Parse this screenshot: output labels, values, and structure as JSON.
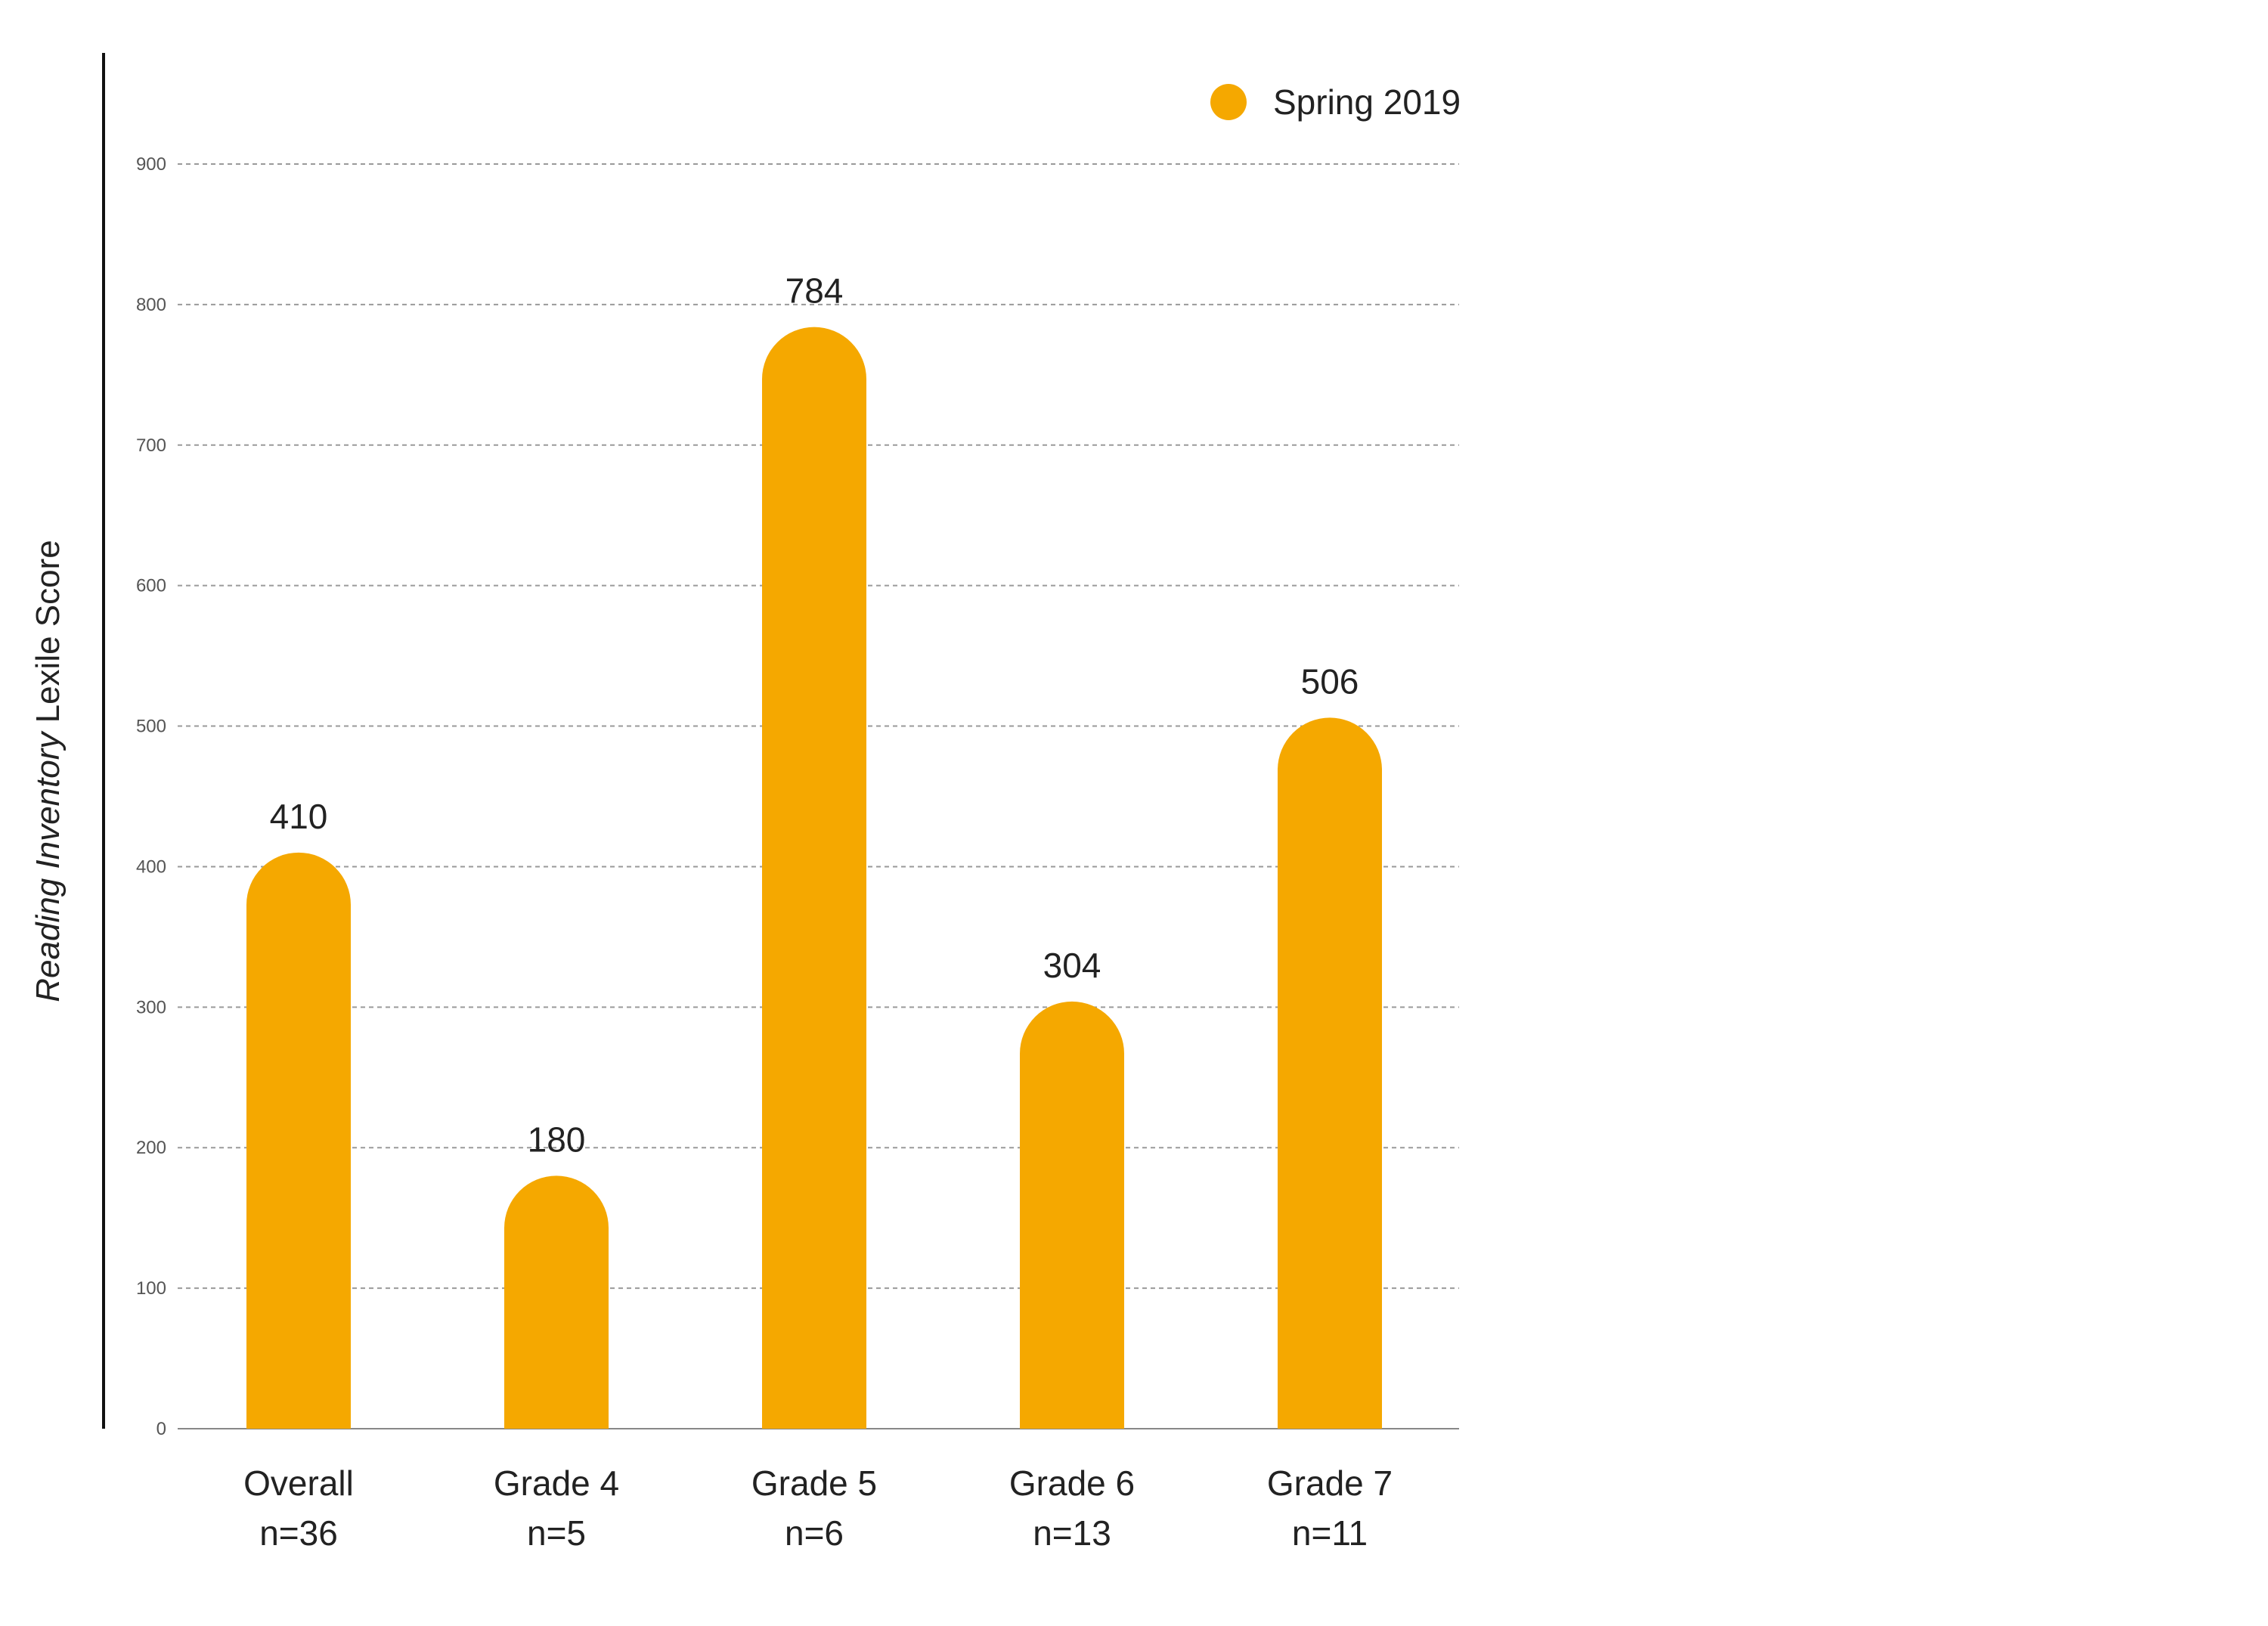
{
  "chart_data": {
    "type": "bar",
    "ylabel_italic": "Reading Inventory",
    "ylabel_rest": " Lexile Score",
    "ylim": [
      0,
      900
    ],
    "yticks": [
      0,
      100,
      200,
      300,
      400,
      500,
      600,
      700,
      800,
      900
    ],
    "grid": true,
    "legend_position": "top-right",
    "categories": [
      {
        "label": "Overall",
        "sublabel": "n=36"
      },
      {
        "label": "Grade 4",
        "sublabel": "n=5"
      },
      {
        "label": "Grade 5",
        "sublabel": "n=6"
      },
      {
        "label": "Grade 6",
        "sublabel": "n=13"
      },
      {
        "label": "Grade 7",
        "sublabel": "n=11"
      }
    ],
    "series": [
      {
        "name": "Spring 2019",
        "color": "#F5A800",
        "values": [
          410,
          180,
          784,
          304,
          506
        ]
      }
    ]
  }
}
